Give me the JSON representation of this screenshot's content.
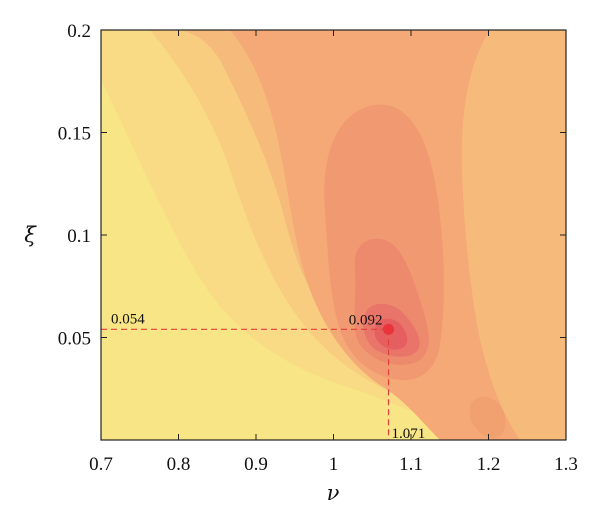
{
  "chart_data": {
    "type": "heatmap",
    "title": "",
    "xlabel": "ν",
    "ylabel": "ξ",
    "xlim": [
      0.7,
      1.3
    ],
    "ylim": [
      0.0,
      0.2
    ],
    "x_ticks": [
      0.7,
      0.8,
      0.9,
      1.0,
      1.1,
      1.2,
      1.3
    ],
    "x_tick_labels": [
      "0.7",
      "0.8",
      "0.9",
      "1",
      "1.1",
      "1.2",
      "1.3"
    ],
    "y_ticks": [
      0.05,
      0.1,
      0.15,
      0.2
    ],
    "y_tick_labels": [
      "0.05",
      "0.1",
      "0.15",
      "0.2"
    ],
    "grid": false,
    "colormap": [
      "#f7f08a",
      "#f8df86",
      "#f8cd80",
      "#f6b87a",
      "#f4a474",
      "#f0906e",
      "#ea6e68",
      "#e45050"
    ],
    "maximum": {
      "x": 1.071,
      "y": 0.054,
      "value": 0.092,
      "color": "#e8343a"
    },
    "annotations": {
      "x_value_label": "1.071",
      "y_value_label": "0.054",
      "max_value_label": "0.092"
    }
  }
}
